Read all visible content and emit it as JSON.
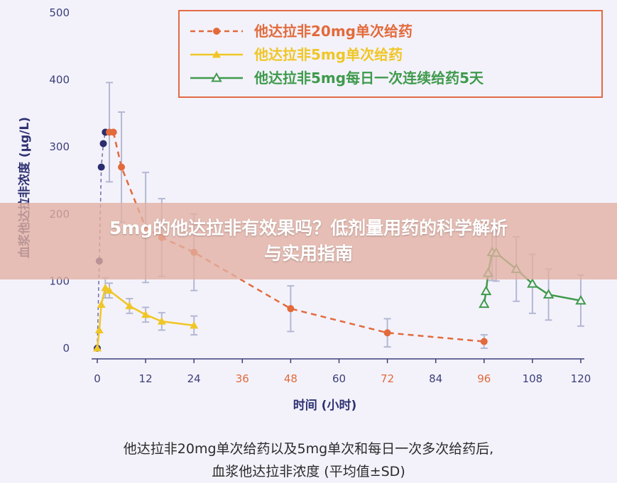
{
  "chart_data": {
    "type": "line",
    "xlabel": "时间 (小时)",
    "ylabel": "血浆他达拉非浓度 (μg/L)",
    "xlim": [
      0,
      120
    ],
    "ylim": [
      0,
      500
    ],
    "x_ticks": [
      0,
      12,
      24,
      36,
      48,
      60,
      72,
      84,
      96,
      108,
      120
    ],
    "y_ticks": [
      0,
      100,
      200,
      300,
      400,
      500
    ],
    "highlight_x_ticks": [
      36,
      48,
      72,
      96
    ],
    "grid": false,
    "legend_position": "top-right",
    "series": [
      {
        "name": "他达拉非20mg单次给药",
        "color": "#e36a3b",
        "line_style": "dashed",
        "marker": "circle-filled",
        "points": [
          {
            "x": 0,
            "y": 0
          },
          {
            "x": 0.5,
            "y": 130
          },
          {
            "x": 1,
            "y": 270
          },
          {
            "x": 1.5,
            "y": 305
          },
          {
            "x": 2,
            "y": 322
          },
          {
            "x": 3,
            "y": 322,
            "err": 74
          },
          {
            "x": 4,
            "y": 322
          },
          {
            "x": 6,
            "y": 270,
            "err": 82
          },
          {
            "x": 12,
            "y": 180,
            "err": 82
          },
          {
            "x": 16,
            "y": 165,
            "err": 58
          },
          {
            "x": 24,
            "y": 143,
            "err": 57
          },
          {
            "x": 48,
            "y": 59,
            "err": 34
          },
          {
            "x": 72,
            "y": 23,
            "err": 21
          },
          {
            "x": 96,
            "y": 10,
            "err": 10
          }
        ]
      },
      {
        "name": "他达拉非5mg单次给药",
        "color": "#f0c626",
        "line_style": "solid",
        "marker": "triangle-filled",
        "points": [
          {
            "x": 0,
            "y": 0
          },
          {
            "x": 0.5,
            "y": 27
          },
          {
            "x": 1,
            "y": 65
          },
          {
            "x": 2,
            "y": 90,
            "err": 15
          },
          {
            "x": 3,
            "y": 86,
            "err": 11
          },
          {
            "x": 8,
            "y": 63,
            "err": 11
          },
          {
            "x": 12,
            "y": 50,
            "err": 11
          },
          {
            "x": 16,
            "y": 40,
            "err": 13
          },
          {
            "x": 24,
            "y": 34,
            "err": 14
          }
        ]
      },
      {
        "name": "他达拉非5mg每日一次连续给药5天",
        "color": "#3f9a4c",
        "line_style": "solid",
        "marker": "triangle-open",
        "points": [
          {
            "x": 96,
            "y": 66
          },
          {
            "x": 96.5,
            "y": 85
          },
          {
            "x": 97,
            "y": 112
          },
          {
            "x": 98,
            "y": 143,
            "err": 42
          },
          {
            "x": 99,
            "y": 142,
            "err": 42
          },
          {
            "x": 104,
            "y": 118,
            "err": 48
          },
          {
            "x": 108,
            "y": 96,
            "err": 44
          },
          {
            "x": 112,
            "y": 80,
            "err": 38
          },
          {
            "x": 120,
            "y": 71,
            "err": 38
          }
        ]
      }
    ],
    "caption_lines": [
      "他达拉非20mg单次给药以及5mg单次和每日一次多次给药后,",
      "血浆他达拉非浓度 (平均值±SD)"
    ]
  },
  "banner": {
    "line1": "5mg的他达拉非有效果吗？低剂量用药的科学解析",
    "line2": "与实用指南"
  },
  "colors": {
    "axis": "#3c3f79",
    "legend_border": "#e26a46",
    "error_bar": "#b4b8d2",
    "background": "#f3f2fb"
  }
}
